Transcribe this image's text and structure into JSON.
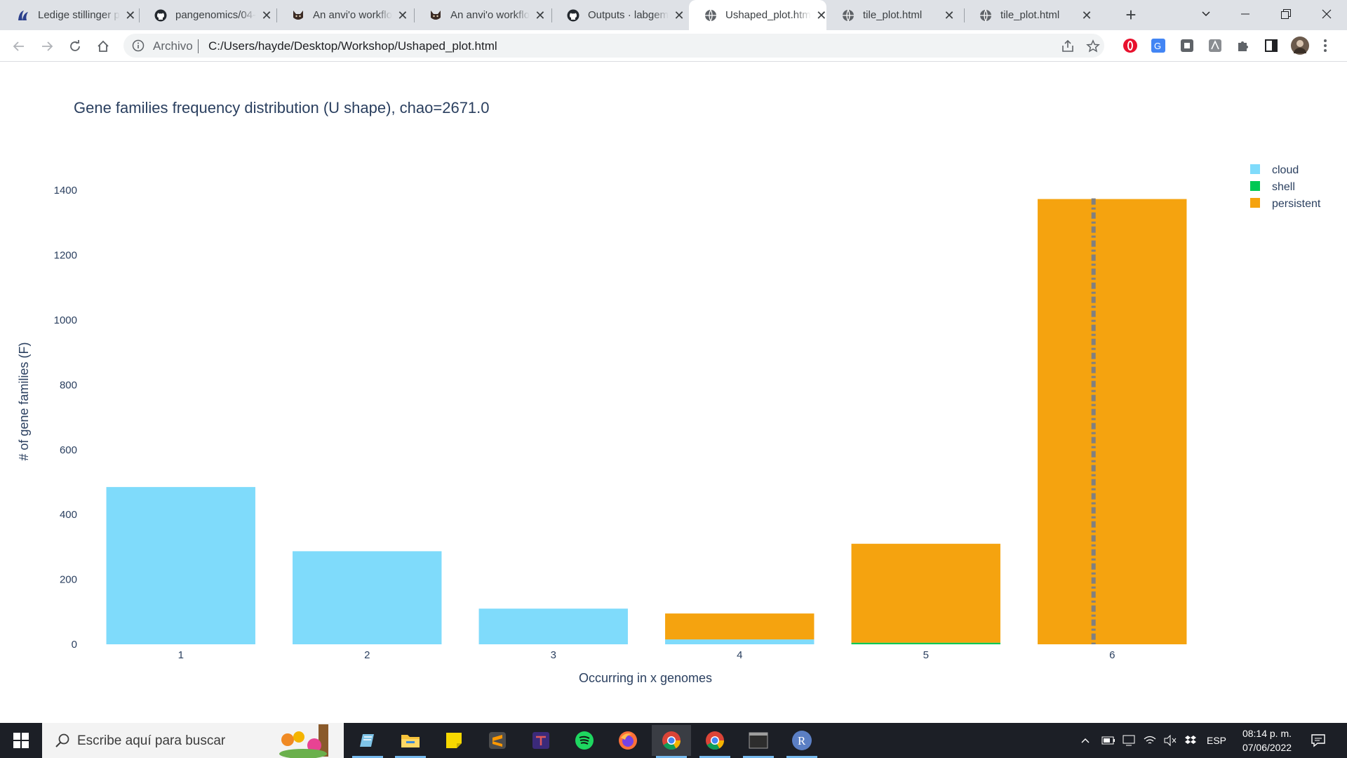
{
  "browser": {
    "tabs": [
      {
        "label": "Ledige stillinger p",
        "icon": "jobs-site-icon",
        "active": false
      },
      {
        "label": "pangenomics/04-",
        "icon": "github-icon",
        "active": false
      },
      {
        "label": "An anvi'o workflo",
        "icon": "anvio-icon",
        "active": false
      },
      {
        "label": "An anvi'o workflo",
        "icon": "anvio-icon",
        "active": false
      },
      {
        "label": "Outputs · labgem",
        "icon": "github-icon",
        "active": false
      },
      {
        "label": "Ushaped_plot.htm",
        "icon": "globe-icon",
        "active": true
      },
      {
        "label": "tile_plot.html",
        "icon": "globe-icon",
        "active": false
      },
      {
        "label": "tile_plot.html",
        "icon": "globe-icon",
        "active": false
      }
    ],
    "address": {
      "label": "Archivo",
      "url": "C:/Users/hayde/Desktop/Workshop/Ushaped_plot.html"
    }
  },
  "chart_data": {
    "type": "bar",
    "title": "Gene families frequency distribution (U shape), chao=2671.0",
    "xlabel": "Occurring in x genomes",
    "ylabel": "# of gene families (F)",
    "categories": [
      "1",
      "2",
      "3",
      "4",
      "5",
      "6"
    ],
    "stacked": true,
    "ylim": [
      0,
      1450
    ],
    "yticks": [
      0,
      200,
      400,
      600,
      800,
      1000,
      1200,
      1400
    ],
    "series": [
      {
        "name": "cloud",
        "color": "#7fdbfb",
        "values": [
          485,
          287,
          110,
          15,
          0,
          0
        ]
      },
      {
        "name": "shell",
        "color": "#00c853",
        "values": [
          0,
          0,
          0,
          0,
          5,
          0
        ]
      },
      {
        "name": "persistent",
        "color": "#f5a30f",
        "values": [
          0,
          0,
          0,
          80,
          305,
          1373
        ]
      }
    ],
    "legend": {
      "placement": "top-right",
      "entries": [
        "cloud",
        "shell",
        "persistent"
      ]
    },
    "vline": {
      "x": 5.9,
      "style": "dashdot",
      "color": "#808080"
    },
    "grid": false
  },
  "taskbar": {
    "search_placeholder": "Escribe aquí para buscar",
    "language": "ESP",
    "time": "08:14 p. m.",
    "date": "07/06/2022"
  }
}
